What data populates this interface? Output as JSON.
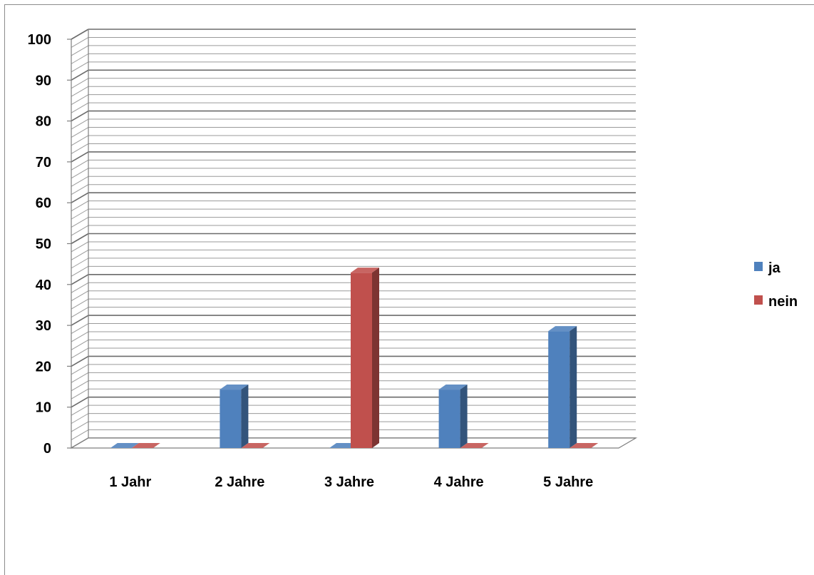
{
  "chart_data": {
    "type": "bar",
    "categories": [
      "1 Jahr",
      "2 Jahre",
      "3 Jahre",
      "4 Jahre",
      "5 Jahre"
    ],
    "series": [
      {
        "name": "ja",
        "values": [
          0,
          14.3,
          0,
          14.3,
          28.6
        ],
        "color": "#4f81bd"
      },
      {
        "name": "nein",
        "values": [
          0,
          0,
          42.9,
          0,
          0
        ],
        "color": "#c0504d"
      }
    ],
    "ylim": [
      0,
      100
    ],
    "yticks": [
      0,
      10,
      20,
      30,
      40,
      50,
      60,
      70,
      80,
      90,
      100
    ],
    "grid": true,
    "three_d": true,
    "legend_position": "right"
  }
}
